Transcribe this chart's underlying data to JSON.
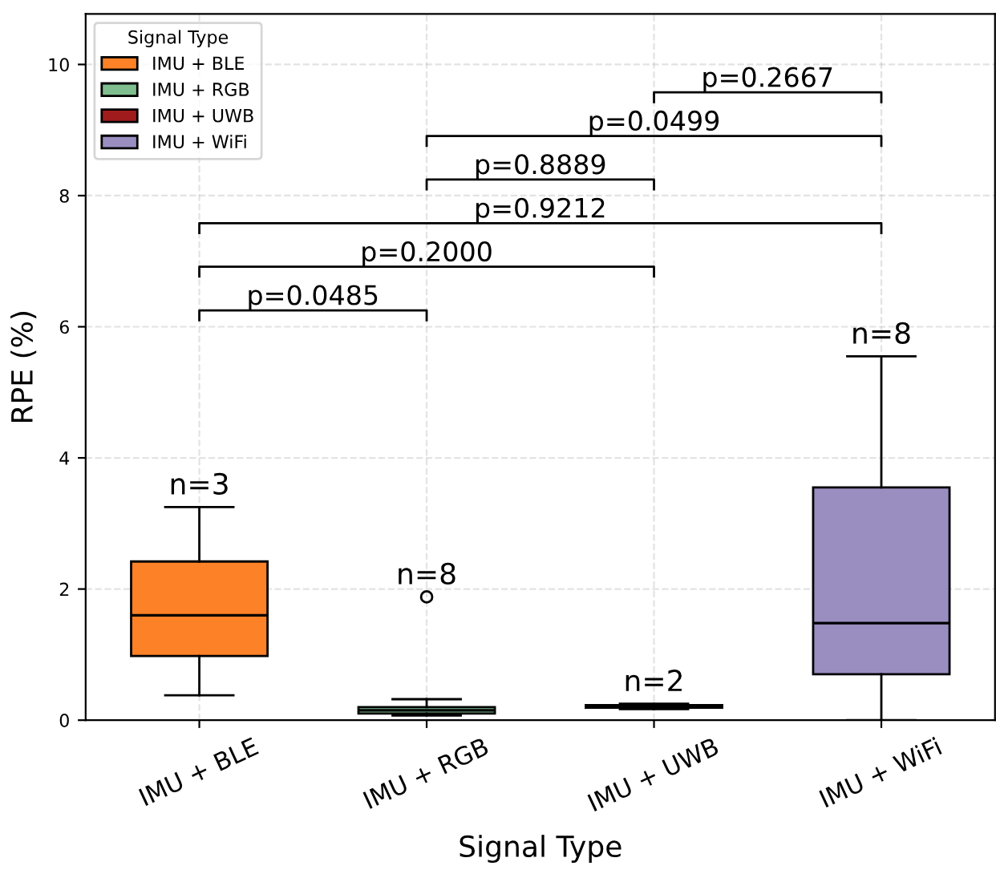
{
  "chart_data": {
    "type": "box",
    "xlabel": "Signal Type",
    "ylabel": "RPE (%)",
    "legend_title": "Signal Type",
    "legend": "top left",
    "grid": true,
    "categories": [
      "IMU + BLE",
      "IMU + RGB",
      "IMU + UWB",
      "IMU + WiFi"
    ],
    "series": [
      {
        "name": "IMU + BLE",
        "color": "#fd8127",
        "boxes": [
          {
            "low": 0.38,
            "q1": 0.98,
            "median": 1.6,
            "q3": 2.42,
            "high": 3.25
          },
          null,
          null,
          null
        ]
      },
      {
        "name": "IMU + RGB",
        "color": "#7fbf8f",
        "boxes": [
          null,
          {
            "low": 0.07,
            "q1": 0.1,
            "median": 0.15,
            "q3": 0.2,
            "high": 0.32,
            "outliers": [
              1.88
            ]
          },
          null,
          null
        ]
      },
      {
        "name": "IMU + UWB",
        "color": "#a01c1c",
        "boxes": [
          null,
          null,
          {
            "low": 0.17,
            "q1": 0.19,
            "median": 0.21,
            "q3": 0.23,
            "high": 0.25
          },
          null
        ]
      },
      {
        "name": "IMU + WiFi",
        "color": "#9a8ec0",
        "boxes": [
          null,
          null,
          null,
          {
            "low": 0.0,
            "q1": 0.7,
            "median": 1.48,
            "q3": 3.55,
            "high": 5.55
          }
        ]
      }
    ],
    "ylim": [
      0,
      10.77
    ],
    "yticks": [
      0,
      2,
      4,
      6,
      8,
      10
    ],
    "annotations": [
      "n=3",
      "n=8",
      "n=2",
      "n=8",
      "p=0.0485",
      "p=0.2000",
      "p=0.9212",
      "p=0.8889",
      "p=0.0499",
      "p=0.2667"
    ]
  }
}
